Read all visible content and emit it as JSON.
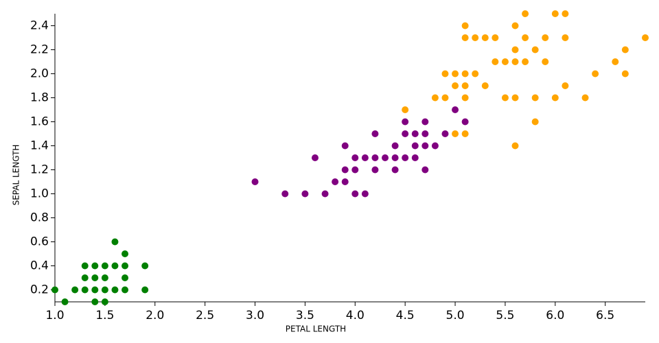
{
  "chart_data": {
    "type": "scatter",
    "x_label": "PETAL LENGTH",
    "y_label": "SEPAL LENGTH",
    "xlim": [
      1.0,
      6.9
    ],
    "ylim": [
      0.1,
      2.5
    ],
    "xticks": [
      {
        "value": 1.0,
        "label": "1.0"
      },
      1.5,
      {
        "value": 2.0,
        "label": "2.0"
      },
      2.5,
      {
        "value": 3.0,
        "label": "3.0"
      },
      3.5,
      {
        "value": 4.0,
        "label": "4.0"
      },
      4.5,
      {
        "value": 5.0,
        "label": "5.0"
      },
      5.5,
      {
        "value": 6.0,
        "label": "6.0"
      },
      6.5
    ],
    "yticks": [
      0.2,
      0.4,
      0.6,
      0.8,
      {
        "value": 1.0,
        "label": "1.0"
      },
      1.2,
      1.4,
      1.6,
      1.8,
      {
        "value": 2.0,
        "label": "2.0"
      },
      2.2,
      2.4
    ],
    "grid": false,
    "series": [
      {
        "color": "#008000",
        "x": [
          1.4,
          1.3,
          1.5,
          1.7,
          1.4,
          1.5,
          1.6,
          1.4,
          1.1,
          1.2,
          1.5,
          1.3,
          1.7,
          1.5,
          1.0,
          1.7,
          1.9,
          1.6,
          1.4,
          1.7,
          1.6,
          1.9,
          1.3
        ],
        "values": [
          0.2,
          0.2,
          0.2,
          0.4,
          0.3,
          0.1,
          0.2,
          0.1,
          0.1,
          0.2,
          0.4,
          0.4,
          0.3,
          0.3,
          0.2,
          0.2,
          0.2,
          0.4,
          0.4,
          0.5,
          0.6,
          0.4,
          0.3
        ]
      },
      {
        "color": "#800080",
        "x": [
          3.0,
          3.3,
          3.5,
          3.6,
          3.7,
          3.8,
          3.9,
          3.9,
          3.9,
          4.0,
          4.0,
          4.0,
          4.1,
          4.1,
          4.2,
          4.2,
          4.2,
          4.3,
          4.4,
          4.4,
          4.4,
          4.5,
          4.5,
          4.5,
          4.6,
          4.6,
          4.6,
          4.7,
          4.7,
          4.7,
          4.7,
          4.8,
          4.9,
          5.0,
          5.1
        ],
        "values": [
          1.1,
          1.0,
          1.0,
          1.3,
          1.0,
          1.1,
          1.1,
          1.2,
          1.4,
          1.0,
          1.2,
          1.3,
          1.0,
          1.3,
          1.2,
          1.3,
          1.5,
          1.3,
          1.2,
          1.3,
          1.4,
          1.3,
          1.5,
          1.6,
          1.3,
          1.4,
          1.5,
          1.2,
          1.4,
          1.5,
          1.6,
          1.4,
          1.5,
          1.7,
          1.6
        ]
      },
      {
        "color": "#ffa500",
        "x": [
          4.5,
          4.8,
          4.9,
          4.9,
          5.0,
          5.0,
          5.0,
          5.1,
          5.1,
          5.1,
          5.1,
          5.1,
          5.1,
          5.2,
          5.2,
          5.3,
          5.3,
          5.4,
          5.4,
          5.5,
          5.5,
          5.6,
          5.6,
          5.6,
          5.6,
          5.6,
          5.7,
          5.7,
          5.7,
          5.8,
          5.8,
          5.8,
          5.9,
          5.9,
          6.0,
          6.0,
          6.1,
          6.1,
          6.1,
          6.3,
          6.4,
          6.6,
          6.7,
          6.7,
          6.9
        ],
        "values": [
          1.7,
          1.8,
          1.8,
          2.0,
          1.5,
          1.9,
          2.0,
          1.5,
          1.8,
          1.9,
          2.0,
          2.3,
          2.4,
          2.0,
          2.3,
          1.9,
          2.3,
          2.1,
          2.3,
          1.8,
          2.1,
          1.4,
          1.8,
          2.1,
          2.2,
          2.4,
          2.1,
          2.3,
          2.5,
          1.6,
          1.8,
          2.2,
          2.1,
          2.3,
          1.8,
          2.5,
          1.9,
          2.3,
          2.5,
          1.8,
          2.0,
          2.1,
          2.0,
          2.2,
          2.3
        ]
      }
    ]
  }
}
